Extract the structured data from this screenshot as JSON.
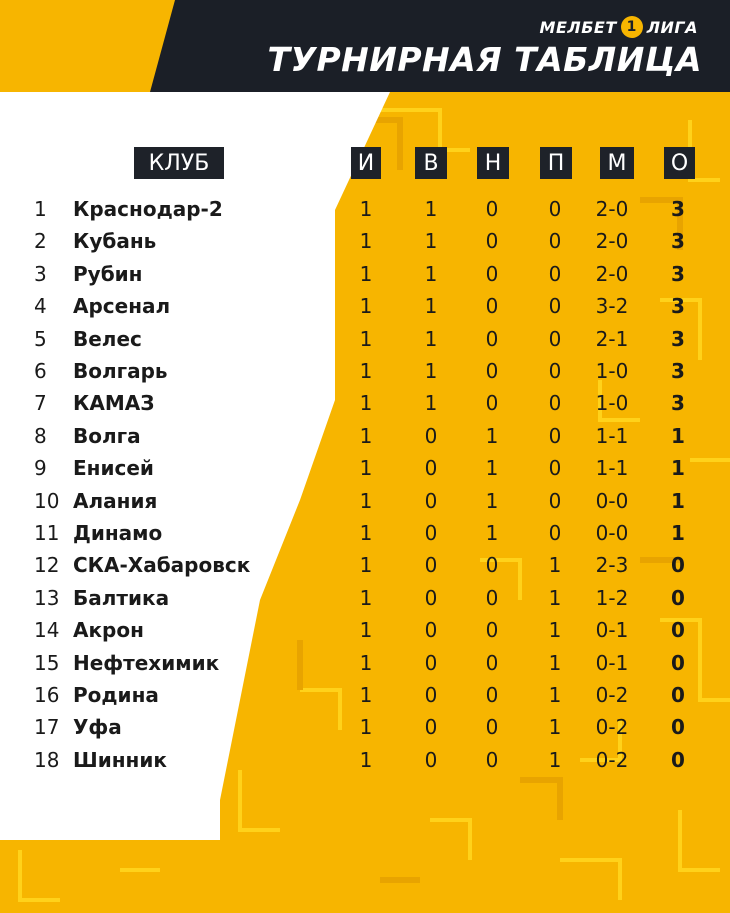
{
  "brand": {
    "name": "МЕЛБЕТ",
    "number": "1",
    "suffix": "ЛИГА"
  },
  "title": "ТУРНИРНАЯ ТАБЛИЦА",
  "columns": {
    "club": "КЛУБ",
    "games": "И",
    "wins": "В",
    "draws": "Н",
    "losses": "П",
    "goals": "М",
    "points": "О"
  },
  "colors": {
    "accent": "#f7b500",
    "dark": "#1b1f27",
    "white": "#ffffff"
  },
  "rows": [
    {
      "pos": "1",
      "club": "Краснодар-2",
      "g": "1",
      "w": "1",
      "d": "0",
      "l": "0",
      "gd": "2-0",
      "pts": "3"
    },
    {
      "pos": "2",
      "club": "Кубань",
      "g": "1",
      "w": "1",
      "d": "0",
      "l": "0",
      "gd": "2-0",
      "pts": "3"
    },
    {
      "pos": "3",
      "club": "Рубин",
      "g": "1",
      "w": "1",
      "d": "0",
      "l": "0",
      "gd": "2-0",
      "pts": "3"
    },
    {
      "pos": "4",
      "club": "Арсенал",
      "g": "1",
      "w": "1",
      "d": "0",
      "l": "0",
      "gd": "3-2",
      "pts": "3"
    },
    {
      "pos": "5",
      "club": "Велес",
      "g": "1",
      "w": "1",
      "d": "0",
      "l": "0",
      "gd": "2-1",
      "pts": "3"
    },
    {
      "pos": "6",
      "club": "Волгарь",
      "g": "1",
      "w": "1",
      "d": "0",
      "l": "0",
      "gd": "1-0",
      "pts": "3"
    },
    {
      "pos": "7",
      "club": "КАМАЗ",
      "g": "1",
      "w": "1",
      "d": "0",
      "l": "0",
      "gd": "1-0",
      "pts": "3"
    },
    {
      "pos": "8",
      "club": "Волга",
      "g": "1",
      "w": "0",
      "d": "1",
      "l": "0",
      "gd": "1-1",
      "pts": "1"
    },
    {
      "pos": "9",
      "club": "Енисей",
      "g": "1",
      "w": "0",
      "d": "1",
      "l": "0",
      "gd": "1-1",
      "pts": "1"
    },
    {
      "pos": "10",
      "club": "Алания",
      "g": "1",
      "w": "0",
      "d": "1",
      "l": "0",
      "gd": "0-0",
      "pts": "1"
    },
    {
      "pos": "11",
      "club": "Динамо",
      "g": "1",
      "w": "0",
      "d": "1",
      "l": "0",
      "gd": "0-0",
      "pts": "1"
    },
    {
      "pos": "12",
      "club": "СКА-Хабаровск",
      "g": "1",
      "w": "0",
      "d": "0",
      "l": "1",
      "gd": "2-3",
      "pts": "0"
    },
    {
      "pos": "13",
      "club": "Балтика",
      "g": "1",
      "w": "0",
      "d": "0",
      "l": "1",
      "gd": "1-2",
      "pts": "0"
    },
    {
      "pos": "14",
      "club": "Акрон",
      "g": "1",
      "w": "0",
      "d": "0",
      "l": "1",
      "gd": "0-1",
      "pts": "0"
    },
    {
      "pos": "15",
      "club": "Нефтехимик",
      "g": "1",
      "w": "0",
      "d": "0",
      "l": "1",
      "gd": "0-1",
      "pts": "0"
    },
    {
      "pos": "16",
      "club": "Родина",
      "g": "1",
      "w": "0",
      "d": "0",
      "l": "1",
      "gd": "0-2",
      "pts": "0"
    },
    {
      "pos": "17",
      "club": "Уфа",
      "g": "1",
      "w": "0",
      "d": "0",
      "l": "1",
      "gd": "0-2",
      "pts": "0"
    },
    {
      "pos": "18",
      "club": "Шинник",
      "g": "1",
      "w": "0",
      "d": "0",
      "l": "1",
      "gd": "0-2",
      "pts": "0"
    }
  ]
}
